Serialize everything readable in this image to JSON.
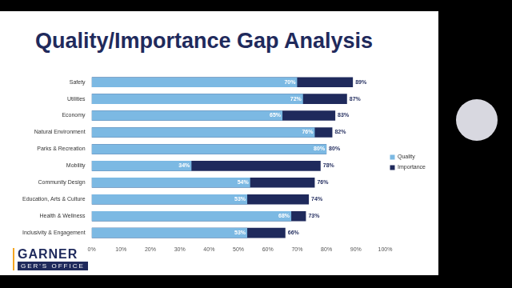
{
  "chart_data": {
    "type": "bar",
    "title": "Quality/Importance Gap Analysis",
    "orientation": "horizontal",
    "categories": [
      "Safety",
      "Utilities",
      "Economy",
      "Natural Environment",
      "Parks & Recreation",
      "Mobility",
      "Community Design",
      "Education, Arts & Culture",
      "Health & Wellness",
      "Inclusivity & Engagement"
    ],
    "series": [
      {
        "name": "Quality",
        "color": "#7cb9e3",
        "values": [
          70,
          72,
          65,
          76,
          80,
          34,
          54,
          53,
          68,
          53
        ],
        "value_labels": [
          "70%",
          "72%",
          "65%",
          "76%",
          "80%",
          "34%",
          "54%",
          "53%",
          "68%",
          "53%"
        ]
      },
      {
        "name": "Importance",
        "color": "#1f2a5c",
        "values": [
          89,
          87,
          83,
          82,
          80,
          78,
          76,
          74,
          73,
          66
        ],
        "value_labels": [
          "89%",
          "87%",
          "83%",
          "82%",
          "80%",
          "78%",
          "76%",
          "74%",
          "73%",
          "66%"
        ]
      }
    ],
    "xlim": [
      0,
      100
    ],
    "xticks": [
      {
        "value": 0,
        "label": "0%"
      },
      {
        "value": 10,
        "label": "10%"
      },
      {
        "value": 20,
        "label": "20%"
      },
      {
        "value": 30,
        "label": "30%"
      },
      {
        "value": 40,
        "label": "40%"
      },
      {
        "value": 50,
        "label": "50%"
      },
      {
        "value": 60,
        "label": "60%"
      },
      {
        "value": 70,
        "label": "70%"
      },
      {
        "value": 80,
        "label": "80%"
      },
      {
        "value": 90,
        "label": "90%"
      },
      {
        "value": 100,
        "label": "100%"
      }
    ],
    "grid": false,
    "stacked": false,
    "legend": "right",
    "data_labels": true,
    "annotations": [
      "GARNER",
      "GER'S OFFICE"
    ]
  }
}
